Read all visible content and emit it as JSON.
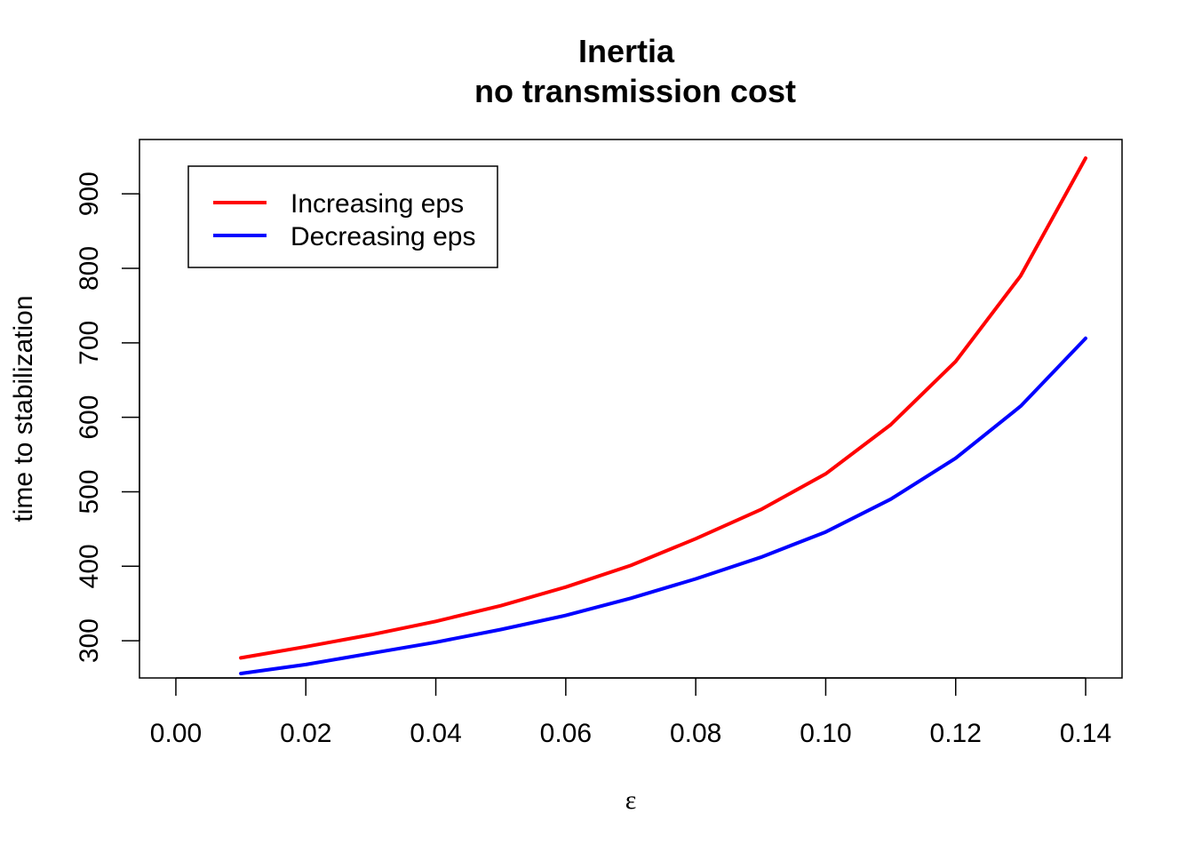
{
  "chart_data": {
    "type": "line",
    "title": "Inertia",
    "subtitle": "no transmission cost",
    "xlabel": "ε",
    "ylabel": "time to stabilization",
    "xlim": [
      -0.0056,
      0.1456
    ],
    "ylim": [
      250,
      973
    ],
    "x_ticks": [
      0.0,
      0.02,
      0.04,
      0.06,
      0.08,
      0.1,
      0.12,
      0.14
    ],
    "x_tick_labels": [
      "0.00",
      "0.02",
      "0.04",
      "0.06",
      "0.08",
      "0.10",
      "0.12",
      "0.14"
    ],
    "y_ticks": [
      300,
      400,
      500,
      600,
      700,
      800,
      900
    ],
    "y_tick_labels": [
      "300",
      "400",
      "500",
      "600",
      "700",
      "800",
      "900"
    ],
    "grid": false,
    "legend_position": "top-left",
    "x": [
      0.01,
      0.02,
      0.03,
      0.04,
      0.05,
      0.06,
      0.07,
      0.08,
      0.09,
      0.1,
      0.11,
      0.12,
      0.13,
      0.14
    ],
    "series": [
      {
        "name": "Increasing eps",
        "color": "#ff0000",
        "values": [
          277,
          292,
          308,
          326,
          347,
          372,
          401,
          437,
          476,
          524,
          590,
          675,
          790,
          948
        ]
      },
      {
        "name": "Decreasing eps",
        "color": "#0000ff",
        "values": [
          256,
          268,
          283,
          298,
          315,
          334,
          357,
          383,
          412,
          446,
          490,
          545,
          615,
          706
        ]
      }
    ]
  }
}
